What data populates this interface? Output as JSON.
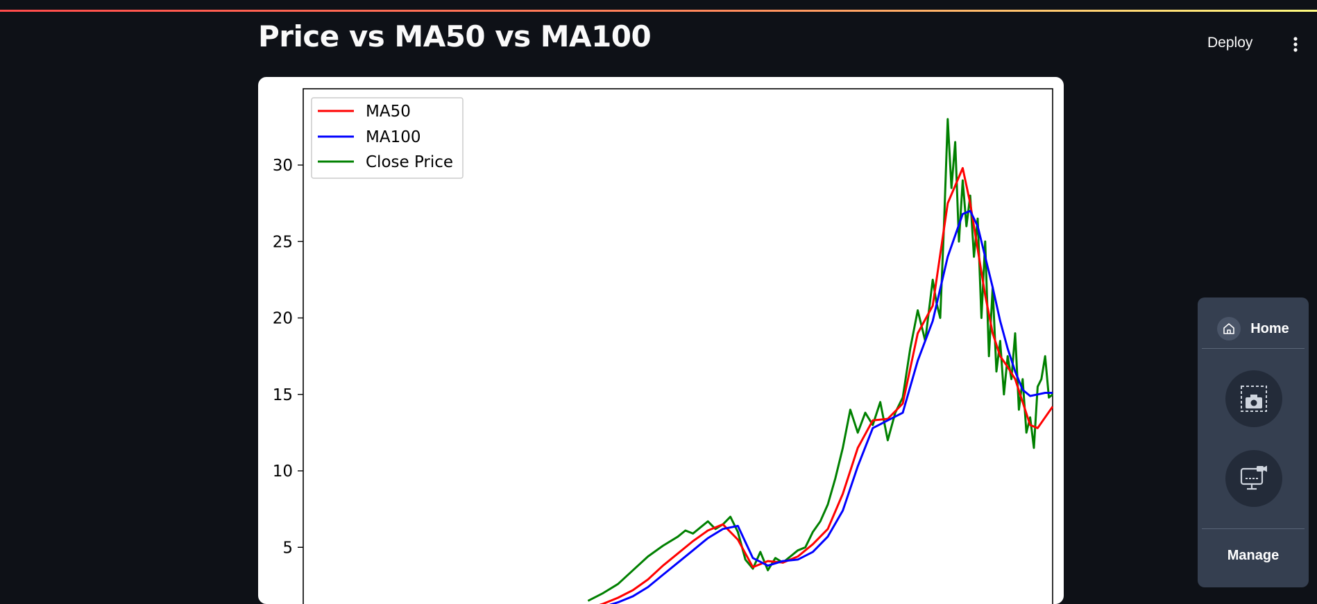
{
  "page": {
    "title": "Price vs MA50 vs MA100"
  },
  "header": {
    "deploy_label": "Deploy",
    "menu_icon": "kebab-vertical-icon"
  },
  "side_panel": {
    "home_label": "Home",
    "home_icon": "home-icon",
    "screenshot_icon": "camera-screenshot-icon",
    "record_icon": "screen-record-icon",
    "manage_label": "Manage"
  },
  "colors": {
    "background": "#0e1117",
    "ma50": "#ff0000",
    "ma100": "#0000ff",
    "close": "#008000",
    "panel": "#353f50"
  },
  "chart_data": {
    "type": "line",
    "title": "",
    "xlabel": "",
    "ylabel": "",
    "ylim": [
      0,
      34
    ],
    "yticks": [
      5,
      10,
      15,
      20,
      25,
      30
    ],
    "ytick_labels": [
      "5",
      "10",
      "15",
      "20",
      "25",
      "30"
    ],
    "xlim": [
      0,
      100
    ],
    "grid": false,
    "legend": "upper-left",
    "series": [
      {
        "name": "MA50",
        "color": "#ff0000",
        "x": [
          38,
          40,
          42,
          44,
          46,
          48,
          50,
          52,
          54,
          56,
          58,
          60,
          62,
          64,
          66,
          68,
          70,
          72,
          74,
          76,
          78,
          80,
          82,
          84,
          86,
          88,
          89,
          90,
          91,
          92,
          93,
          94,
          95,
          96,
          97,
          98,
          99,
          100
        ],
        "y": [
          1.0,
          1.3,
          1.7,
          2.2,
          2.9,
          3.8,
          4.6,
          5.4,
          6.1,
          6.5,
          5.5,
          3.7,
          4.1,
          4.0,
          4.4,
          5.2,
          6.2,
          8.5,
          11.5,
          13.3,
          13.4,
          14.4,
          19.0,
          20.8,
          27.5,
          29.8,
          27.5,
          24.5,
          21.5,
          19.0,
          17.5,
          16.8,
          16.0,
          14.5,
          13.0,
          12.8,
          13.5,
          14.2
        ]
      },
      {
        "name": "MA100",
        "color": "#0000ff",
        "x": [
          38,
          40,
          42,
          44,
          46,
          48,
          50,
          52,
          54,
          56,
          58,
          60,
          62,
          64,
          66,
          68,
          70,
          72,
          74,
          76,
          78,
          80,
          82,
          84,
          86,
          88,
          89,
          90,
          91,
          92,
          93,
          94,
          95,
          96,
          97,
          98,
          99,
          100
        ],
        "y": [
          1.0,
          1.1,
          1.4,
          1.8,
          2.4,
          3.2,
          4.0,
          4.8,
          5.6,
          6.2,
          6.4,
          4.3,
          3.8,
          4.1,
          4.2,
          4.7,
          5.7,
          7.4,
          10.3,
          12.8,
          13.3,
          13.8,
          17.2,
          19.8,
          24.0,
          26.8,
          27.0,
          26.0,
          24.0,
          22.0,
          19.8,
          18.0,
          16.5,
          15.3,
          14.9,
          15.0,
          15.1,
          15.1
        ]
      },
      {
        "name": "Close Price",
        "color": "#008000",
        "x": [
          38,
          40,
          42,
          44,
          46,
          48,
          50,
          51,
          52,
          53,
          54,
          55,
          56,
          57,
          58,
          59,
          60,
          61,
          62,
          63,
          64,
          65,
          66,
          67,
          68,
          69,
          70,
          71,
          72,
          73,
          74,
          75,
          76,
          77,
          78,
          79,
          80,
          81,
          82,
          83,
          84,
          84.5,
          85,
          85.5,
          86,
          86.5,
          87,
          87.5,
          88,
          88.5,
          89,
          89.5,
          90,
          90.5,
          91,
          91.5,
          92,
          92.5,
          93,
          93.5,
          94,
          94.5,
          95,
          95.5,
          96,
          96.5,
          97,
          97.5,
          98,
          98.5,
          99,
          99.5,
          100
        ],
        "y": [
          1.5,
          2.0,
          2.6,
          3.5,
          4.4,
          5.1,
          5.7,
          6.1,
          5.9,
          6.3,
          6.7,
          6.2,
          6.5,
          7.0,
          6.0,
          4.2,
          3.6,
          4.7,
          3.5,
          4.3,
          4.0,
          4.4,
          4.8,
          5.0,
          6.0,
          6.7,
          7.8,
          9.5,
          11.5,
          14.0,
          12.5,
          13.8,
          13.0,
          14.5,
          12.0,
          13.8,
          14.8,
          18.0,
          20.5,
          18.5,
          22.5,
          21.0,
          20.0,
          26.0,
          33.0,
          28.5,
          31.5,
          25.0,
          29.0,
          26.0,
          28.0,
          24.0,
          26.5,
          20.0,
          25.0,
          17.5,
          22.0,
          16.5,
          18.5,
          15.0,
          17.5,
          16.0,
          19.0,
          14.0,
          16.0,
          12.5,
          13.5,
          11.5,
          15.5,
          16.0,
          17.5,
          14.8,
          15.0
        ]
      }
    ]
  }
}
